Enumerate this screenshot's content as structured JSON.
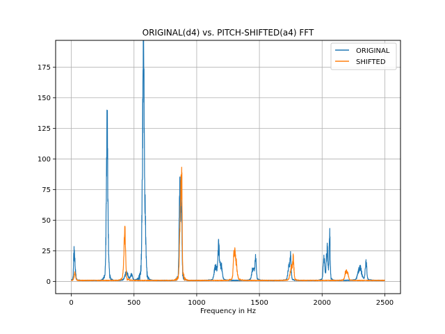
{
  "chart_data": {
    "type": "line",
    "title": "ORIGINAL(d4) vs. PITCH-SHIFTED(a4) FFT",
    "xlabel": "Frequency in Hz",
    "ylabel": "",
    "xlim": [
      -125,
      2625
    ],
    "ylim": [
      -10,
      197
    ],
    "xticks": [
      0,
      500,
      1000,
      1500,
      2000,
      2500
    ],
    "yticks": [
      0,
      25,
      50,
      75,
      100,
      125,
      150,
      175
    ],
    "grid": true,
    "legend_position": "top-right",
    "series": [
      {
        "name": "ORIGINAL",
        "color": "#1f77b4",
        "peaks": [
          {
            "f": 22,
            "a": 27,
            "w": 4
          },
          {
            "f": 30,
            "a": 12,
            "w": 5
          },
          {
            "f": 287,
            "a": 97,
            "w": 4
          },
          {
            "f": 282,
            "a": 80,
            "w": 5
          },
          {
            "f": 295,
            "a": 25,
            "w": 5
          },
          {
            "f": 440,
            "a": 8,
            "w": 12
          },
          {
            "f": 480,
            "a": 6,
            "w": 8
          },
          {
            "f": 577,
            "a": 187,
            "w": 4
          },
          {
            "f": 570,
            "a": 120,
            "w": 6
          },
          {
            "f": 588,
            "a": 60,
            "w": 6
          },
          {
            "f": 865,
            "a": 85,
            "w": 5
          },
          {
            "f": 878,
            "a": 88,
            "w": 4
          },
          {
            "f": 1150,
            "a": 13,
            "w": 10
          },
          {
            "f": 1175,
            "a": 33,
            "w": 6
          },
          {
            "f": 1195,
            "a": 15,
            "w": 8
          },
          {
            "f": 1450,
            "a": 12,
            "w": 10
          },
          {
            "f": 1470,
            "a": 23,
            "w": 5
          },
          {
            "f": 1735,
            "a": 12,
            "w": 8
          },
          {
            "f": 1748,
            "a": 21,
            "w": 5
          },
          {
            "f": 2015,
            "a": 24,
            "w": 6
          },
          {
            "f": 2040,
            "a": 32,
            "w": 6
          },
          {
            "f": 2060,
            "a": 45,
            "w": 4
          },
          {
            "f": 2300,
            "a": 13,
            "w": 14
          },
          {
            "f": 2350,
            "a": 18,
            "w": 6
          }
        ]
      },
      {
        "name": "SHIFTED",
        "color": "#ff7f0e",
        "peaks": [
          {
            "f": 28,
            "a": 7,
            "w": 6
          },
          {
            "f": 428,
            "a": 39,
            "w": 5
          },
          {
            "f": 422,
            "a": 20,
            "w": 7
          },
          {
            "f": 870,
            "a": 72,
            "w": 6
          },
          {
            "f": 880,
            "a": 89,
            "w": 4
          },
          {
            "f": 1300,
            "a": 28,
            "w": 7
          },
          {
            "f": 1315,
            "a": 15,
            "w": 8
          },
          {
            "f": 1755,
            "a": 12,
            "w": 10
          },
          {
            "f": 1770,
            "a": 18,
            "w": 5
          },
          {
            "f": 2190,
            "a": 9,
            "w": 8
          },
          {
            "f": 2205,
            "a": 6,
            "w": 6
          }
        ]
      }
    ]
  }
}
